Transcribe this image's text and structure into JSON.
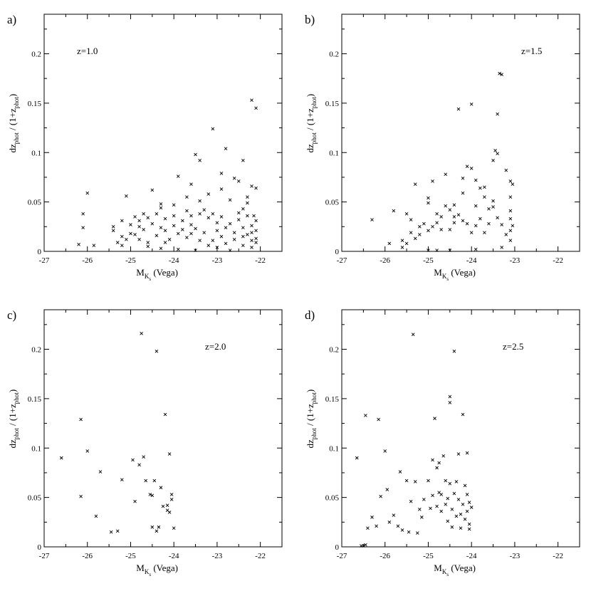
{
  "chart_data": [
    {
      "type": "scatter",
      "panel_label": "a)",
      "annotation": "z=1.0",
      "xlabel": {
        "main": "M",
        "sub": "K",
        "subsub": "s",
        "suffix": " (Vega)"
      },
      "ylabel": {
        "p1": "dz",
        "s1": "phot",
        "p2": " / (1+z",
        "s2": "phot",
        "p3": ")"
      },
      "xlim": [
        -27,
        -21.5
      ],
      "ylim": [
        0,
        0.24
      ],
      "x_ticks": [
        "-27",
        "-26",
        "-25",
        "-24",
        "-23",
        "-22"
      ],
      "y_ticks": [
        "0",
        "0.05",
        "0.1",
        "0.15",
        "0.2"
      ],
      "marker": "x",
      "points": [
        [
          -26.0,
          0.059
        ],
        [
          -26.1,
          0.038
        ],
        [
          -26.1,
          0.024
        ],
        [
          -26.2,
          0.007
        ],
        [
          -25.85,
          0.006
        ],
        [
          -25.1,
          0.056
        ],
        [
          -25.4,
          0.025
        ],
        [
          -25.4,
          0.021
        ],
        [
          -25.2,
          0.031
        ],
        [
          -25.2,
          0.015
        ],
        [
          -24.9,
          0.035
        ],
        [
          -24.7,
          0.038
        ],
        [
          -24.5,
          0.062
        ],
        [
          -24.3,
          0.048
        ],
        [
          -23.9,
          0.076
        ],
        [
          -23.6,
          0.068
        ],
        [
          -23.5,
          0.098
        ],
        [
          -23.4,
          0.092
        ],
        [
          -23.1,
          0.124
        ],
        [
          -22.9,
          0.079
        ],
        [
          -22.8,
          0.104
        ],
        [
          -22.6,
          0.074
        ],
        [
          -22.5,
          0.071
        ],
        [
          -22.4,
          0.092
        ],
        [
          -22.2,
          0.153
        ],
        [
          -22.1,
          0.145
        ],
        [
          -22.2,
          0.066
        ],
        [
          -22.1,
          0.064
        ],
        [
          -22.3,
          0.055
        ],
        [
          -22.3,
          0.049
        ],
        [
          -22.4,
          0.043
        ],
        [
          -22.7,
          0.052
        ],
        [
          -22.9,
          0.063
        ],
        [
          -23.2,
          0.058
        ],
        [
          -23.4,
          0.051
        ],
        [
          -23.7,
          0.055
        ],
        [
          -24.0,
          0.047
        ],
        [
          -24.3,
          0.044
        ],
        [
          -25.0,
          0.018
        ],
        [
          -24.8,
          0.012
        ],
        [
          -24.6,
          0.009
        ],
        [
          -24.4,
          0.016
        ],
        [
          -24.2,
          0.021
        ],
        [
          -24.0,
          0.026
        ],
        [
          -23.8,
          0.031
        ],
        [
          -23.6,
          0.036
        ],
        [
          -23.4,
          0.038
        ],
        [
          -23.2,
          0.034
        ],
        [
          -23.0,
          0.029
        ],
        [
          -22.8,
          0.024
        ],
        [
          -22.6,
          0.019
        ],
        [
          -22.4,
          0.015
        ],
        [
          -22.2,
          0.011
        ],
        [
          -22.1,
          0.013
        ],
        [
          -22.1,
          0.021
        ],
        [
          -22.1,
          0.031
        ],
        [
          -22.15,
          0.036
        ],
        [
          -22.2,
          0.026
        ],
        [
          -22.3,
          0.017
        ],
        [
          -22.5,
          0.032
        ],
        [
          -22.7,
          0.028
        ],
        [
          -22.9,
          0.015
        ],
        [
          -23.1,
          0.011
        ],
        [
          -23.3,
          0.019
        ],
        [
          -23.5,
          0.023
        ],
        [
          -23.7,
          0.014
        ],
        [
          -23.9,
          0.018
        ],
        [
          -24.1,
          0.012
        ],
        [
          -24.3,
          0.024
        ],
        [
          -24.5,
          0.028
        ],
        [
          -24.7,
          0.022
        ],
        [
          -24.9,
          0.017
        ],
        [
          -25.1,
          0.012
        ],
        [
          -25.3,
          0.009
        ],
        [
          -25.0,
          0.027
        ],
        [
          -24.8,
          0.031
        ],
        [
          -24.6,
          0.034
        ],
        [
          -24.4,
          0.038
        ],
        [
          -24.2,
          0.033
        ],
        [
          -24.0,
          0.036
        ],
        [
          -23.8,
          0.022
        ],
        [
          -23.6,
          0.027
        ],
        [
          -23.4,
          0.011
        ],
        [
          -23.2,
          0.006
        ],
        [
          -23.0,
          0.004
        ],
        [
          -22.8,
          0.008
        ],
        [
          -22.6,
          0.012
        ],
        [
          -22.4,
          0.006
        ],
        [
          -22.2,
          0.004
        ],
        [
          -22.1,
          0.009
        ],
        [
          -23.5,
          0.001
        ],
        [
          -23.9,
          0.002
        ],
        [
          -24.3,
          0.003
        ],
        [
          -22.7,
          0.001
        ],
        [
          -24.6,
          0.005
        ],
        [
          -25.2,
          0.006
        ],
        [
          -23.1,
          0.038
        ],
        [
          -23.3,
          0.042
        ],
        [
          -22.9,
          0.035
        ],
        [
          -22.5,
          0.039
        ],
        [
          -23.7,
          0.041
        ],
        [
          -22.3,
          0.036
        ],
        [
          -24.8,
          0.025
        ],
        [
          -24.2,
          0.009
        ],
        [
          -23.6,
          0.018
        ],
        [
          -23.0,
          0.021
        ],
        [
          -22.4,
          0.024
        ],
        [
          -22.2,
          0.019
        ]
      ]
    },
    {
      "type": "scatter",
      "panel_label": "b)",
      "annotation": "z=1.5",
      "xlabel": {
        "main": "M",
        "sub": "K",
        "subsub": "s",
        "suffix": " (Vega)"
      },
      "ylabel": {
        "p1": "dz",
        "s1": "phot",
        "p2": " / (1+z",
        "s2": "phot",
        "p3": ")"
      },
      "xlim": [
        -27,
        -21.5
      ],
      "ylim": [
        0,
        0.24
      ],
      "x_ticks": [
        "-27",
        "-26",
        "-25",
        "-24",
        "-23",
        "-22"
      ],
      "y_ticks": [
        "0",
        "0.05",
        "0.1",
        "0.15",
        "0.2"
      ],
      "marker": "x",
      "points": [
        [
          -26.3,
          0.032
        ],
        [
          -25.8,
          0.041
        ],
        [
          -25.9,
          0.008
        ],
        [
          -25.6,
          0.011
        ],
        [
          -25.5,
          0.038
        ],
        [
          -25.4,
          0.032
        ],
        [
          -25.3,
          0.068
        ],
        [
          -25.2,
          0.025
        ],
        [
          -25.0,
          0.054
        ],
        [
          -25.0,
          0.049
        ],
        [
          -24.9,
          0.071
        ],
        [
          -24.8,
          0.038
        ],
        [
          -24.7,
          0.022
        ],
        [
          -24.6,
          0.078
        ],
        [
          -24.5,
          0.042
        ],
        [
          -24.4,
          0.035
        ],
        [
          -24.3,
          0.144
        ],
        [
          -24.2,
          0.074
        ],
        [
          -24.1,
          0.086
        ],
        [
          -24.0,
          0.149
        ],
        [
          -24.0,
          0.084
        ],
        [
          -23.9,
          0.072
        ],
        [
          -23.8,
          0.064
        ],
        [
          -23.7,
          0.055
        ],
        [
          -23.6,
          0.043
        ],
        [
          -23.5,
          0.092
        ],
        [
          -23.45,
          0.102
        ],
        [
          -23.4,
          0.099
        ],
        [
          -23.4,
          0.139
        ],
        [
          -23.35,
          0.18
        ],
        [
          -23.3,
          0.179
        ],
        [
          -23.2,
          0.082
        ],
        [
          -23.1,
          0.071
        ],
        [
          -23.05,
          0.068
        ],
        [
          -23.1,
          0.055
        ],
        [
          -23.1,
          0.041
        ],
        [
          -23.1,
          0.033
        ],
        [
          -23.05,
          0.026
        ],
        [
          -23.1,
          0.021
        ],
        [
          -23.2,
          0.017
        ],
        [
          -23.3,
          0.027
        ],
        [
          -23.4,
          0.034
        ],
        [
          -23.5,
          0.045
        ],
        [
          -23.6,
          0.028
        ],
        [
          -23.7,
          0.019
        ],
        [
          -23.8,
          0.033
        ],
        [
          -23.9,
          0.026
        ],
        [
          -24.0,
          0.019
        ],
        [
          -24.1,
          0.028
        ],
        [
          -24.2,
          0.031
        ],
        [
          -24.3,
          0.037
        ],
        [
          -24.4,
          0.029
        ],
        [
          -24.5,
          0.022
        ],
        [
          -24.6,
          0.046
        ],
        [
          -24.7,
          0.035
        ],
        [
          -24.8,
          0.029
        ],
        [
          -24.9,
          0.025
        ],
        [
          -25.0,
          0.021
        ],
        [
          -25.1,
          0.028
        ],
        [
          -25.2,
          0.017
        ],
        [
          -25.3,
          0.013
        ],
        [
          -25.4,
          0.019
        ],
        [
          -25.5,
          0.008
        ],
        [
          -25.6,
          0.004
        ],
        [
          -25.0,
          0.001
        ],
        [
          -24.8,
          0.001
        ],
        [
          -24.5,
          0.001
        ],
        [
          -23.9,
          0.002
        ],
        [
          -23.3,
          0.004
        ],
        [
          -23.1,
          0.011
        ],
        [
          -23.5,
          0.051
        ],
        [
          -23.7,
          0.065
        ],
        [
          -24.2,
          0.059
        ],
        [
          -24.4,
          0.047
        ],
        [
          -23.9,
          0.046
        ]
      ]
    },
    {
      "type": "scatter",
      "panel_label": "c)",
      "annotation": "z=2.0",
      "xlabel": {
        "main": "M",
        "sub": "K",
        "subsub": "s",
        "suffix": " (Vega)"
      },
      "ylabel": {
        "p1": "dz",
        "s1": "phot",
        "p2": " / (1+z",
        "s2": "phot",
        "p3": ")"
      },
      "xlim": [
        -27,
        -21.5
      ],
      "ylim": [
        0,
        0.24
      ],
      "x_ticks": [
        "-27",
        "-26",
        "-25",
        "-24",
        "-23",
        "-22"
      ],
      "y_ticks": [
        "0",
        "0.05",
        "0.1",
        "0.15",
        "0.2"
      ],
      "marker": "x",
      "points": [
        [
          -26.6,
          0.09
        ],
        [
          -26.15,
          0.129
        ],
        [
          -26.15,
          0.051
        ],
        [
          -26.0,
          0.097
        ],
        [
          -25.8,
          0.031
        ],
        [
          -25.7,
          0.076
        ],
        [
          -25.45,
          0.015
        ],
        [
          -25.3,
          0.016
        ],
        [
          -25.2,
          0.068
        ],
        [
          -24.95,
          0.088
        ],
        [
          -24.9,
          0.046
        ],
        [
          -24.8,
          0.083
        ],
        [
          -24.75,
          0.216
        ],
        [
          -24.7,
          0.091
        ],
        [
          -24.65,
          0.067
        ],
        [
          -24.55,
          0.053
        ],
        [
          -24.5,
          0.052
        ],
        [
          -24.5,
          0.02
        ],
        [
          -24.45,
          0.067
        ],
        [
          -24.4,
          0.198
        ],
        [
          -24.4,
          0.016
        ],
        [
          -24.35,
          0.02
        ],
        [
          -24.3,
          0.06
        ],
        [
          -24.25,
          0.041
        ],
        [
          -24.2,
          0.134
        ],
        [
          -24.15,
          0.042
        ],
        [
          -24.15,
          0.037
        ],
        [
          -24.1,
          0.094
        ],
        [
          -24.1,
          0.035
        ],
        [
          -24.05,
          0.053
        ],
        [
          -24.05,
          0.048
        ],
        [
          -24.0,
          0.019
        ]
      ]
    },
    {
      "type": "scatter",
      "panel_label": "d)",
      "annotation": "z=2.5",
      "xlabel": {
        "main": "M",
        "sub": "K",
        "subsub": "s",
        "suffix": " (Vega)"
      },
      "ylabel": {
        "p1": "dz",
        "s1": "phot",
        "p2": " / (1+z",
        "s2": "phot",
        "p3": ")"
      },
      "xlim": [
        -27,
        -21.5
      ],
      "ylim": [
        0,
        0.24
      ],
      "x_ticks": [
        "-27",
        "-26",
        "-25",
        "-24",
        "-23",
        "-22"
      ],
      "y_ticks": [
        "0",
        "0.05",
        "0.1",
        "0.15",
        "0.2"
      ],
      "marker": "x",
      "points": [
        [
          -26.65,
          0.09
        ],
        [
          -26.45,
          0.133
        ],
        [
          -26.15,
          0.129
        ],
        [
          -26.4,
          0.019
        ],
        [
          -26.3,
          0.03
        ],
        [
          -26.2,
          0.021
        ],
        [
          -26.1,
          0.051
        ],
        [
          -26.0,
          0.097
        ],
        [
          -25.95,
          0.058
        ],
        [
          -25.9,
          0.025
        ],
        [
          -25.8,
          0.032
        ],
        [
          -25.7,
          0.021
        ],
        [
          -25.65,
          0.076
        ],
        [
          -25.6,
          0.017
        ],
        [
          -25.5,
          0.067
        ],
        [
          -25.45,
          0.015
        ],
        [
          -25.4,
          0.046
        ],
        [
          -25.35,
          0.215
        ],
        [
          -25.3,
          0.066
        ],
        [
          -25.25,
          0.014
        ],
        [
          -25.2,
          0.038
        ],
        [
          -25.15,
          0.03
        ],
        [
          -25.1,
          0.048
        ],
        [
          -25.0,
          0.067
        ],
        [
          -24.95,
          0.039
        ],
        [
          -24.9,
          0.088
        ],
        [
          -24.9,
          0.052
        ],
        [
          -24.85,
          0.13
        ],
        [
          -24.8,
          0.041
        ],
        [
          -24.8,
          0.08
        ],
        [
          -24.75,
          0.085
        ],
        [
          -24.7,
          0.036
        ],
        [
          -24.7,
          0.053
        ],
        [
          -24.65,
          0.092
        ],
        [
          -24.6,
          0.067
        ],
        [
          -24.6,
          0.043
        ],
        [
          -24.55,
          0.026
        ],
        [
          -24.5,
          0.152
        ],
        [
          -24.5,
          0.146
        ],
        [
          -24.5,
          0.064
        ],
        [
          -24.45,
          0.038
        ],
        [
          -24.45,
          0.02
        ],
        [
          -24.4,
          0.198
        ],
        [
          -24.4,
          0.054
        ],
        [
          -24.35,
          0.031
        ],
        [
          -24.3,
          0.094
        ],
        [
          -24.3,
          0.048
        ],
        [
          -24.25,
          0.019
        ],
        [
          -24.2,
          0.134
        ],
        [
          -24.2,
          0.043
        ],
        [
          -24.15,
          0.028
        ],
        [
          -24.1,
          0.095
        ],
        [
          -24.1,
          0.053
        ],
        [
          -24.1,
          0.036
        ],
        [
          -24.05,
          0.045
        ],
        [
          -24.05,
          0.023
        ],
        [
          -24.05,
          0.018
        ],
        [
          -24.0,
          0.04
        ],
        [
          -26.55,
          0.001
        ],
        [
          -26.5,
          0.001
        ],
        [
          -26.45,
          0.002
        ],
        [
          -24.75,
          0.055
        ],
        [
          -24.55,
          0.049
        ],
        [
          -24.35,
          0.066
        ],
        [
          -24.25,
          0.033
        ],
        [
          -24.15,
          0.062
        ]
      ]
    }
  ]
}
